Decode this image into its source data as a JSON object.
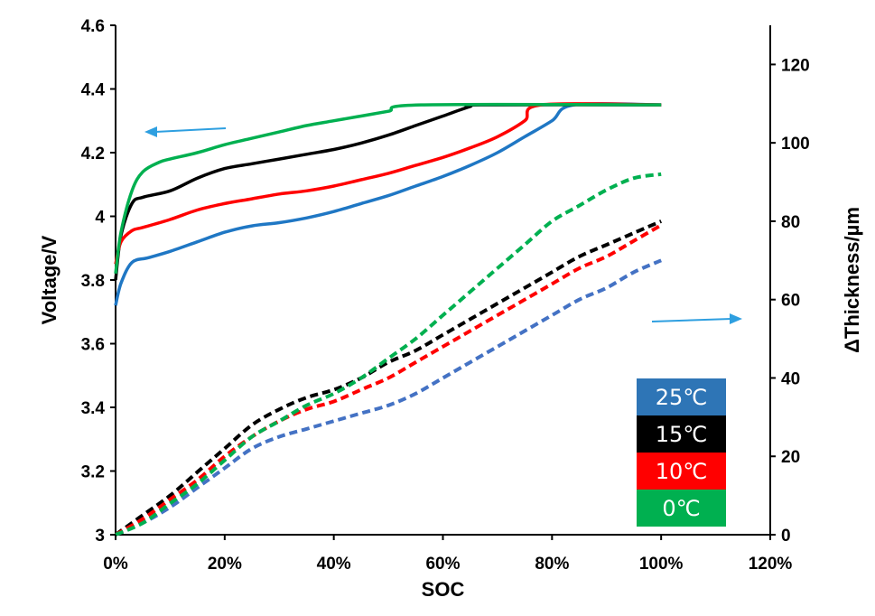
{
  "chart_data": {
    "type": "line",
    "xlabel": "SOC",
    "ylabel_left": "Voltage/V",
    "ylabel_right": "ΔThickness/µm",
    "xlim": [
      0,
      1.2
    ],
    "ylim_left": [
      3,
      4.6
    ],
    "ylim_right": [
      0,
      130
    ],
    "x_ticks": [
      0,
      0.2,
      0.4,
      0.6,
      0.8,
      1.0,
      1.2
    ],
    "x_tick_labels": [
      "0%",
      "20%",
      "40%",
      "60%",
      "80%",
      "100%",
      "120%"
    ],
    "yl_ticks": [
      3,
      3.2,
      3.4,
      3.6,
      3.8,
      4,
      4.2,
      4.4,
      4.6
    ],
    "yl_tick_labels": [
      "3",
      "3.2",
      "3.4",
      "3.6",
      "3.8",
      "4",
      "4.2",
      "4.4",
      "4.6"
    ],
    "yr_ticks": [
      0,
      20,
      40,
      60,
      80,
      100,
      120
    ],
    "yr_tick_labels": [
      "0",
      "20",
      "40",
      "60",
      "80",
      "100",
      "120"
    ],
    "grid": false,
    "legend_position": "bottom-right",
    "legend": [
      {
        "label": "25℃",
        "color": "#2e75b6"
      },
      {
        "label": "15℃",
        "color": "#000000"
      },
      {
        "label": "10℃",
        "color": "#ff0000"
      },
      {
        "label": "0℃",
        "color": "#00b050"
      }
    ],
    "arrows": [
      {
        "points_to": "left-axis",
        "color": "#2e9fe0"
      },
      {
        "points_to": "right-axis",
        "color": "#2e9fe0"
      }
    ],
    "voltage_series": [
      {
        "name": "25℃",
        "color": "#1f77c4",
        "axis": "left",
        "x": [
          0,
          0.01,
          0.03,
          0.06,
          0.1,
          0.15,
          0.2,
          0.25,
          0.3,
          0.35,
          0.4,
          0.45,
          0.5,
          0.55,
          0.6,
          0.65,
          0.7,
          0.75,
          0.8,
          0.84,
          1.0
        ],
        "y": [
          3.72,
          3.79,
          3.855,
          3.87,
          3.89,
          3.92,
          3.95,
          3.97,
          3.98,
          3.995,
          4.015,
          4.04,
          4.065,
          4.095,
          4.125,
          4.16,
          4.2,
          4.25,
          4.3,
          4.35,
          4.35
        ]
      },
      {
        "name": "15℃",
        "color": "#000000",
        "axis": "left",
        "x": [
          0,
          0.01,
          0.03,
          0.05,
          0.1,
          0.15,
          0.2,
          0.25,
          0.3,
          0.35,
          0.4,
          0.45,
          0.5,
          0.55,
          0.6,
          0.65,
          0.67,
          1.0
        ],
        "y": [
          3.8,
          3.94,
          4.04,
          4.06,
          4.08,
          4.12,
          4.15,
          4.165,
          4.18,
          4.195,
          4.21,
          4.23,
          4.255,
          4.285,
          4.315,
          4.345,
          4.35,
          4.35
        ]
      },
      {
        "name": "10℃",
        "color": "#ff0000",
        "axis": "left",
        "x": [
          0,
          0.01,
          0.03,
          0.05,
          0.1,
          0.15,
          0.2,
          0.25,
          0.3,
          0.35,
          0.4,
          0.45,
          0.5,
          0.55,
          0.6,
          0.65,
          0.7,
          0.75,
          0.78,
          1.0
        ],
        "y": [
          3.85,
          3.92,
          3.955,
          3.965,
          3.99,
          4.02,
          4.04,
          4.055,
          4.07,
          4.08,
          4.095,
          4.115,
          4.135,
          4.16,
          4.185,
          4.215,
          4.25,
          4.3,
          4.35,
          4.35
        ]
      },
      {
        "name": "0℃",
        "color": "#00b050",
        "axis": "left",
        "x": [
          0,
          0.01,
          0.03,
          0.05,
          0.08,
          0.1,
          0.15,
          0.2,
          0.25,
          0.3,
          0.35,
          0.4,
          0.45,
          0.5,
          0.56,
          1.0
        ],
        "y": [
          3.82,
          3.95,
          4.08,
          4.14,
          4.17,
          4.18,
          4.2,
          4.225,
          4.245,
          4.265,
          4.285,
          4.3,
          4.315,
          4.33,
          4.35,
          4.35
        ]
      }
    ],
    "thickness_series": [
      {
        "name": "25℃",
        "color": "#4472c4",
        "axis": "right",
        "x": [
          0,
          0.05,
          0.1,
          0.15,
          0.2,
          0.25,
          0.3,
          0.35,
          0.4,
          0.45,
          0.5,
          0.55,
          0.6,
          0.65,
          0.7,
          0.75,
          0.8,
          0.85,
          0.9,
          0.95,
          1.0
        ],
        "y": [
          0,
          3,
          7,
          12,
          17,
          22,
          25,
          27,
          29,
          31,
          33,
          36,
          40,
          44,
          48,
          52,
          56,
          60,
          63,
          67,
          70
        ]
      },
      {
        "name": "15℃",
        "color": "#000000",
        "axis": "right",
        "x": [
          0,
          0.05,
          0.1,
          0.15,
          0.2,
          0.25,
          0.3,
          0.35,
          0.4,
          0.45,
          0.5,
          0.55,
          0.6,
          0.65,
          0.7,
          0.75,
          0.8,
          0.85,
          0.9,
          0.95,
          1.0
        ],
        "y": [
          0,
          5,
          10,
          16,
          22,
          28,
          32,
          35,
          37,
          40,
          44,
          47,
          51,
          55,
          59,
          63,
          67,
          71,
          74,
          77,
          80
        ]
      },
      {
        "name": "10℃",
        "color": "#ff0000",
        "axis": "right",
        "x": [
          0,
          0.05,
          0.1,
          0.15,
          0.2,
          0.25,
          0.3,
          0.35,
          0.4,
          0.45,
          0.5,
          0.55,
          0.6,
          0.65,
          0.7,
          0.75,
          0.8,
          0.85,
          0.9,
          0.95,
          1.0
        ],
        "y": [
          0,
          4,
          9,
          14,
          20,
          25,
          29,
          32,
          34,
          37,
          40,
          44,
          48,
          52,
          56,
          60,
          64,
          68,
          71,
          75,
          79
        ]
      },
      {
        "name": "0℃",
        "color": "#00b050",
        "axis": "right",
        "x": [
          0,
          0.05,
          0.1,
          0.15,
          0.2,
          0.25,
          0.3,
          0.35,
          0.4,
          0.45,
          0.5,
          0.55,
          0.6,
          0.65,
          0.7,
          0.75,
          0.8,
          0.85,
          0.9,
          0.95,
          1.0
        ],
        "y": [
          0,
          3,
          8,
          13,
          19,
          25,
          29,
          33,
          36,
          40,
          45,
          50,
          56,
          62,
          68,
          74,
          80,
          84,
          88,
          91,
          92
        ]
      }
    ]
  }
}
